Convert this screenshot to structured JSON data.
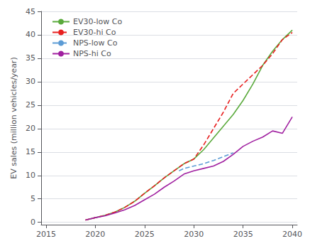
{
  "chart_data": {
    "type": "line",
    "ylabel": "EV sales (million vehicles/year)",
    "xlim": [
      2014.5,
      2040.5
    ],
    "ylim": [
      -0.5,
      45
    ],
    "xticks": [
      2015,
      2020,
      2025,
      2030,
      2035,
      2040
    ],
    "yticks": [
      0,
      5,
      10,
      15,
      20,
      25,
      30,
      35,
      40,
      45
    ],
    "grid": true,
    "legend": "upper left",
    "series": [
      {
        "name": "EV30-low Co",
        "color": "#5aaa3c",
        "line_style": "solid",
        "x": [
          2019,
          2020,
          2021,
          2022,
          2023,
          2024,
          2025,
          2026,
          2027,
          2028,
          2029,
          2030,
          2031,
          2032,
          2033,
          2034,
          2035,
          2036,
          2037,
          2038,
          2039,
          2040
        ],
        "values": [
          0.5,
          1.0,
          1.5,
          2.2,
          3.2,
          4.5,
          6.2,
          7.8,
          9.5,
          11.0,
          12.5,
          13.5,
          15.5,
          18.0,
          20.5,
          23.0,
          26.0,
          29.5,
          33.5,
          36.5,
          39.0,
          41.0
        ]
      },
      {
        "name": "EV30-hi Co",
        "color": "#e82020",
        "line_style": "dashed",
        "x": [
          2019,
          2020,
          2021,
          2022,
          2023,
          2024,
          2025,
          2026,
          2027,
          2028,
          2029,
          2030,
          2031,
          2032,
          2033,
          2034,
          2035,
          2036,
          2037,
          2038,
          2039,
          2040
        ],
        "values": [
          0.5,
          1.0,
          1.5,
          2.2,
          3.2,
          4.5,
          6.2,
          7.8,
          9.5,
          11.0,
          12.5,
          13.5,
          16.5,
          20.0,
          23.5,
          27.5,
          29.5,
          31.5,
          33.5,
          36.0,
          39.0,
          40.5
        ]
      },
      {
        "name": "NPS-low Co",
        "color": "#5b9bd5",
        "line_style": "dashed",
        "x": [
          2028.5,
          2029,
          2030,
          2031,
          2032,
          2033,
          2034
        ],
        "values": [
          11.0,
          11.5,
          12.0,
          12.5,
          13.2,
          14.0,
          14.8
        ]
      },
      {
        "name": "NPS-hi Co",
        "color": "#a020a0",
        "line_style": "solid",
        "x": [
          2019,
          2020,
          2021,
          2022,
          2023,
          2024,
          2025,
          2026,
          2027,
          2028,
          2029,
          2030,
          2031,
          2032,
          2033,
          2034,
          2035,
          2036,
          2037,
          2038,
          2039,
          2040
        ],
        "values": [
          0.5,
          1.0,
          1.4,
          2.0,
          2.7,
          3.6,
          4.8,
          6.0,
          7.5,
          8.8,
          10.3,
          11.0,
          11.5,
          12.0,
          13.0,
          14.5,
          16.2,
          17.3,
          18.2,
          19.5,
          19.0,
          22.5
        ]
      }
    ]
  }
}
